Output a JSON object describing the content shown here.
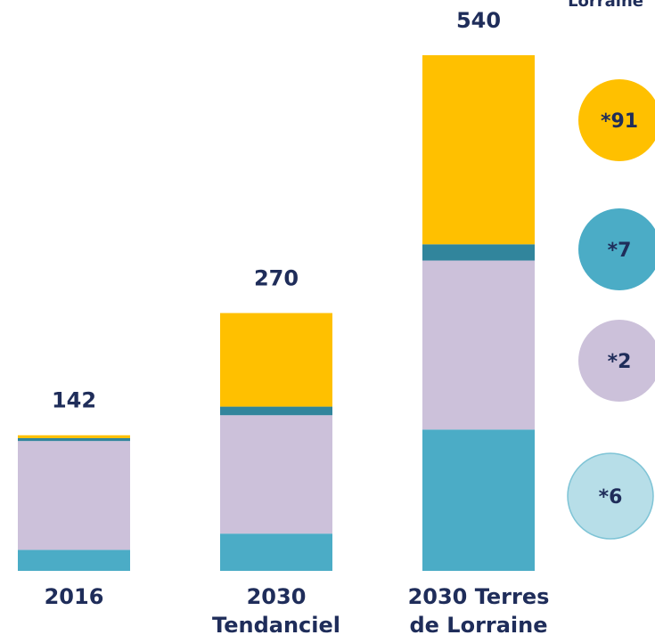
{
  "chart_data": {
    "type": "stacked_bar",
    "categories": [
      "2016",
      "2030 Tendanciel",
      "2030 Terres de Lorraine"
    ],
    "series": [
      {
        "color": "#4BACC6",
        "values": [
          22,
          39,
          148
        ]
      },
      {
        "color": "#CCC1DA",
        "values": [
          114,
          124,
          177
        ]
      },
      {
        "color": "#31859C",
        "values": [
          3,
          9,
          17
        ]
      },
      {
        "color": "#FFC000",
        "values": [
          3,
          98,
          198
        ]
      }
    ],
    "totals": [
      142,
      270,
      540
    ],
    "ylim": [
      0,
      540
    ],
    "badges": [
      {
        "text": "*91",
        "color": "#FFC000"
      },
      {
        "text": "*7",
        "color": "#4BACC6"
      },
      {
        "text": "*2",
        "color": "#CCC1DA"
      },
      {
        "text": "*6",
        "color": "#B7DEE8"
      }
    ],
    "annotation": "Lorraine"
  }
}
